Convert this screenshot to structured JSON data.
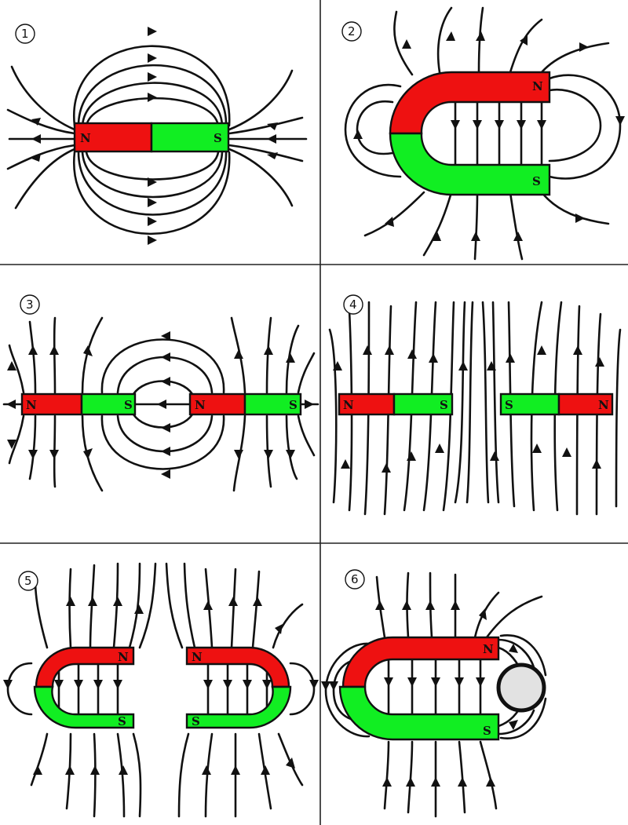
{
  "panels": [
    {
      "number": "1",
      "labels": [
        "N",
        "S"
      ]
    },
    {
      "number": "2",
      "labels": [
        "N",
        "S"
      ]
    },
    {
      "number": "3",
      "labels": [
        "N",
        "S",
        "N",
        "S"
      ]
    },
    {
      "number": "4",
      "labels": [
        "N",
        "S",
        "S",
        "N"
      ]
    },
    {
      "number": "5",
      "labels": [
        "N",
        "S",
        "N",
        "S"
      ]
    },
    {
      "number": "6",
      "labels": [
        "N",
        "S"
      ]
    }
  ],
  "colors": {
    "north": "#ee1111",
    "south": "#11ee22",
    "line": "#111111"
  }
}
